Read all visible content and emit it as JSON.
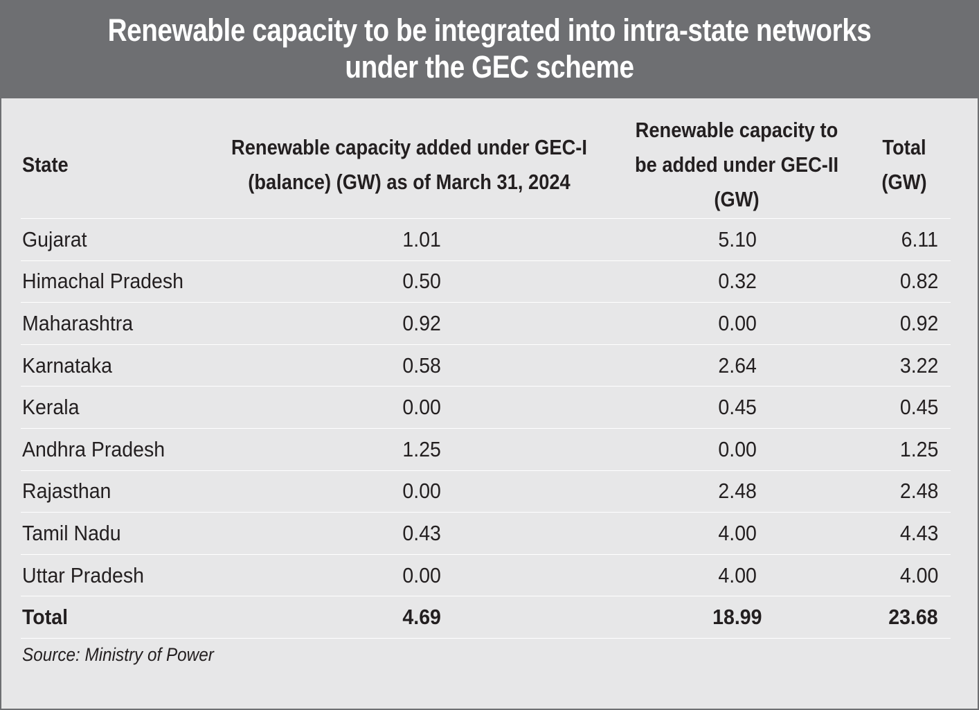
{
  "title": "Renewable capacity to be integrated into intra-state networks under the GEC scheme",
  "columns": {
    "state": "State",
    "gec1": "Renewable capacity added under GEC-I (balance) (GW) as of March 31, 2024",
    "gec2": "Renewable capacity to be added under GEC-II (GW)",
    "total": "Total (GW)"
  },
  "rows": [
    {
      "state": "Gujarat",
      "gec1": "1.01",
      "gec2": "5.10",
      "total": "6.11"
    },
    {
      "state": "Himachal Pradesh",
      "gec1": "0.50",
      "gec2": "0.32",
      "total": "0.82"
    },
    {
      "state": "Maharashtra",
      "gec1": "0.92",
      "gec2": "0.00",
      "total": "0.92"
    },
    {
      "state": "Karnataka",
      "gec1": "0.58",
      "gec2": "2.64",
      "total": "3.22"
    },
    {
      "state": "Kerala",
      "gec1": "0.00",
      "gec2": "0.45",
      "total": "0.45"
    },
    {
      "state": "Andhra Pradesh",
      "gec1": "1.25",
      "gec2": "0.00",
      "total": "1.25"
    },
    {
      "state": "Rajasthan",
      "gec1": "0.00",
      "gec2": "2.48",
      "total": "2.48"
    },
    {
      "state": "Tamil Nadu",
      "gec1": "0.43",
      "gec2": "4.00",
      "total": "4.43"
    },
    {
      "state": "Uttar Pradesh",
      "gec1": "0.00",
      "gec2": "4.00",
      "total": "4.00"
    }
  ],
  "total_row": {
    "state": "Total",
    "gec1": "4.69",
    "gec2": "18.99",
    "total": "23.68"
  },
  "source": "Source: Ministry of Power",
  "colors": {
    "header_bar": "#6e6f72",
    "background": "#e7e7e8",
    "text": "#231f20",
    "rule": "#ffffff"
  }
}
